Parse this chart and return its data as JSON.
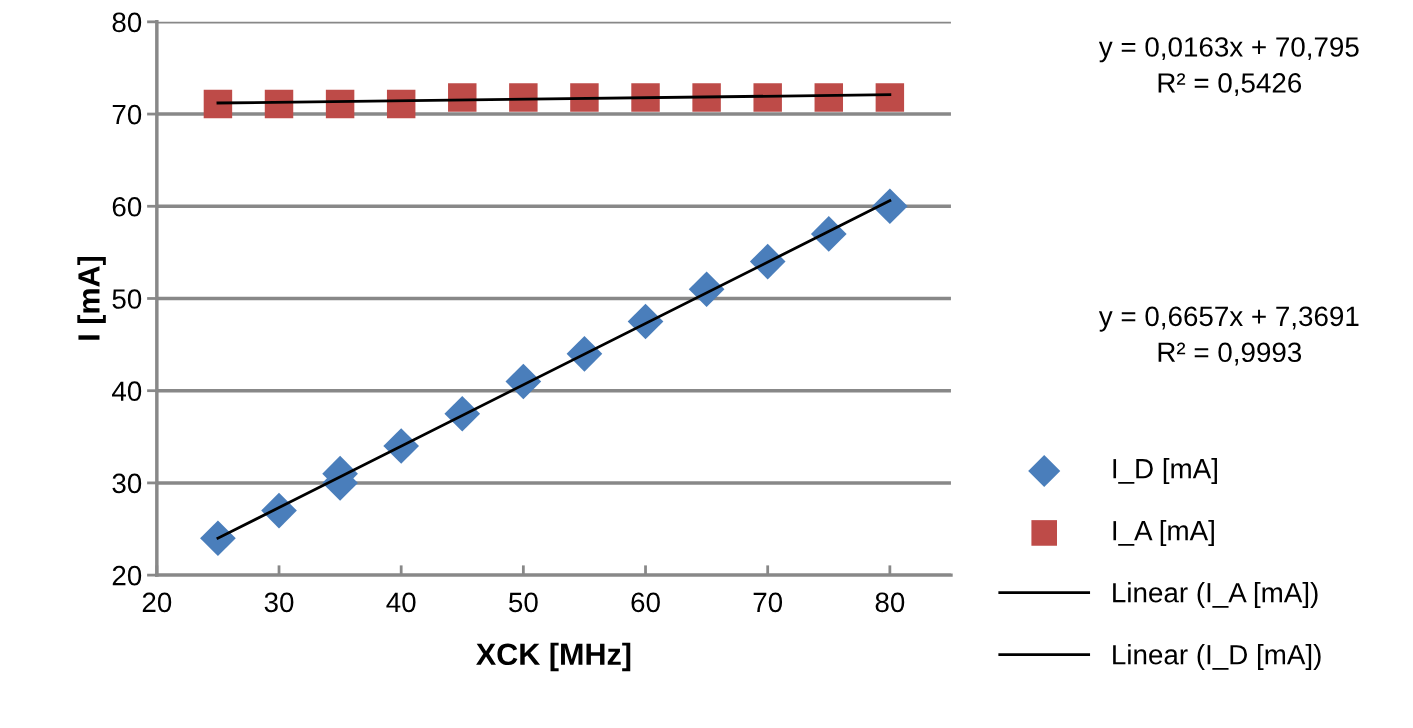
{
  "chart_data": {
    "type": "scatter",
    "xlabel": "XCK [MHz]",
    "ylabel": "I [mA]",
    "xlim": [
      20,
      85
    ],
    "xticks": [
      20,
      30,
      40,
      50,
      60,
      70,
      80
    ],
    "ylim": [
      20,
      80
    ],
    "yticks": [
      20,
      30,
      40,
      50,
      60,
      70,
      80
    ],
    "grid": "y",
    "legend": "right",
    "series": [
      {
        "name": "I_D [mA]",
        "color": "#4a7ebb",
        "marker": "diamond",
        "x": [
          25,
          30,
          35,
          35,
          40,
          45,
          50,
          55,
          60,
          65,
          70,
          75,
          80
        ],
        "values": [
          24,
          27,
          31,
          30,
          34,
          37.5,
          41,
          44,
          47.5,
          51,
          54,
          57,
          60
        ]
      },
      {
        "name": "I_A [mA]",
        "color": "#be4b48",
        "marker": "square",
        "x": [
          25,
          30,
          35,
          40,
          45,
          50,
          55,
          60,
          65,
          70,
          75,
          80
        ],
        "values": [
          71.1,
          71.1,
          71.1,
          71.1,
          71.8,
          71.8,
          71.8,
          71.8,
          71.8,
          71.8,
          71.8,
          71.8
        ]
      },
      {
        "name": "Linear (I_A [mA])",
        "type": "line",
        "color": "#000000",
        "marker": "none",
        "line_style": "solid",
        "x": [
          25,
          80
        ],
        "values": [
          71.2,
          72.1
        ]
      },
      {
        "name": "Linear (I_D [mA])",
        "type": "line",
        "color": "#000000",
        "marker": "none",
        "line_style": "solid",
        "x": [
          25,
          80
        ],
        "values": [
          24.0,
          60.6
        ]
      }
    ],
    "annotations": [
      "y = 0,0163x + 70,795\nR² = 0,5426",
      "y = 0,6657x + 7,3691\nR² = 0,9993"
    ]
  }
}
